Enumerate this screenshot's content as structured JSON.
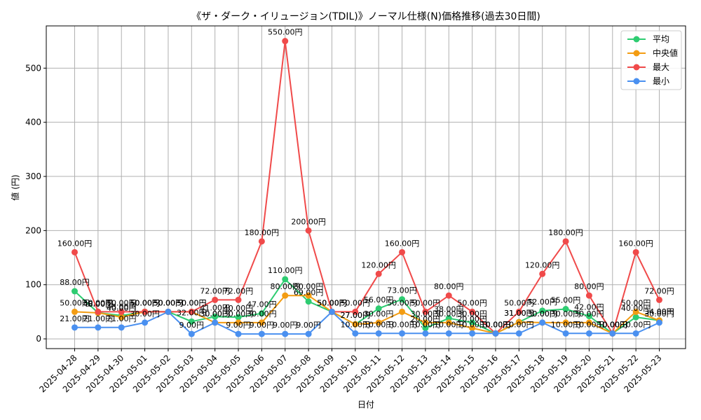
{
  "chart_data": {
    "type": "line",
    "title": "《ザ・ダーク・イリュージョン(TDIL)》ノーマル仕様(N)価格推移(過去30日間)",
    "xlabel": "日付",
    "ylabel": "値 (円)",
    "ylim": [
      -18,
      578
    ],
    "yticks": [
      0,
      100,
      200,
      300,
      400,
      500
    ],
    "grid": true,
    "legend_position": "top-right",
    "label_suffix": "円",
    "categories": [
      "2025-04-28",
      "2025-04-29",
      "2025-04-30",
      "2025-05-01",
      "2025-05-02",
      "2025-05-03",
      "2025-05-04",
      "2025-05-05",
      "2025-05-06",
      "2025-05-07",
      "2025-05-08",
      "2025-05-09",
      "2025-05-10",
      "2025-05-11",
      "2025-05-12",
      "2025-05-13",
      "2025-05-14",
      "2025-05-15",
      "2025-05-16",
      "2025-05-17",
      "2025-05-18",
      "2025-05-19",
      "2025-05-20",
      "2025-05-21",
      "2025-05-22",
      "2025-05-23"
    ],
    "series": [
      {
        "name": "平均",
        "color": "#2ecc71",
        "values": [
          88,
          48,
          43,
          50,
          50,
          32,
          41,
          40,
          47,
          110,
          69,
          50,
          27,
          56,
          73,
          20,
          38,
          30,
          10,
          31,
          52,
          55,
          42,
          10,
          40,
          34
        ]
      },
      {
        "name": "中央値",
        "color": "#f39c12",
        "values": [
          50,
          48,
          40,
          50,
          50,
          50,
          30,
          30,
          30,
          80,
          80,
          50,
          27,
          30,
          50,
          30,
          30,
          20,
          10,
          31,
          30,
          30,
          30,
          10,
          50,
          34
        ]
      },
      {
        "name": "最大",
        "color": "#f04a4a",
        "values": [
          160,
          50,
          50,
          50,
          50,
          50,
          72,
          72,
          180,
          550,
          200,
          50,
          50,
          120,
          160,
          50,
          80,
          50,
          10,
          50,
          120,
          180,
          80,
          10,
          160,
          72
        ]
      },
      {
        "name": "最小",
        "color": "#4a90f0",
        "values": [
          21,
          21,
          21,
          30,
          50,
          9,
          30,
          9,
          9,
          9,
          9,
          50,
          10,
          10,
          10,
          10,
          10,
          10,
          10,
          10,
          30,
          10,
          10,
          10,
          10,
          30
        ]
      }
    ]
  }
}
